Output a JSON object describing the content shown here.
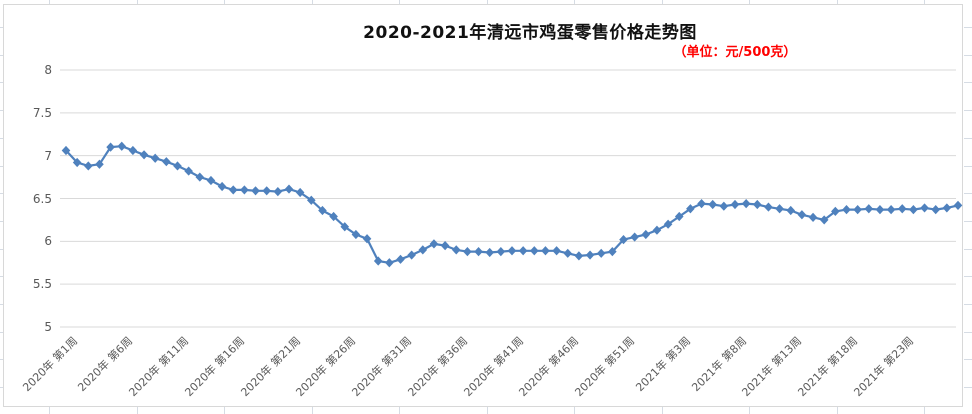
{
  "chart": {
    "title": "2020-2021年清远市鸡蛋零售价格走势图",
    "subtitle": "（单位：元/500克）"
  },
  "chart_data": {
    "type": "line",
    "title": "2020-2021年清远市鸡蛋零售价格走势图",
    "subtitle": "（单位：元/500克）",
    "unit": "元/500克",
    "series_name": "鸡蛋零售价格",
    "marker": "diamond",
    "line_color": "#4f81bd",
    "grid_color": "#d9d9d9",
    "axis_text_color": "#595959",
    "title_color": "#111111",
    "subtitle_color": "#ff0000",
    "grid": true,
    "legend_position": "none",
    "ylim": [
      5,
      8
    ],
    "ytick_step": 0.5,
    "ytick_labels": [
      "8",
      "7.5",
      "7",
      "6.5",
      "6",
      "5.5",
      "5"
    ],
    "xtick_every": 5,
    "xtick_labels": [
      "2020年 第1周",
      "2020年 第6周",
      "2020年 第11周",
      "2020年 第16周",
      "2020年 第21周",
      "2020年 第26周",
      "2020年 第31周",
      "2020年 第36周",
      "2020年 第41周",
      "2020年 第46周",
      "2020年 第51周",
      "2021年 第3周",
      "2021年 第8周",
      "2021年 第13周",
      "2021年 第18周",
      "2021年 第23周"
    ],
    "x": [
      "2020年 第1周",
      "2020年 第2周",
      "2020年 第3周",
      "2020年 第4周",
      "2020年 第5周",
      "2020年 第6周",
      "2020年 第7周",
      "2020年 第8周",
      "2020年 第9周",
      "2020年 第10周",
      "2020年 第11周",
      "2020年 第12周",
      "2020年 第13周",
      "2020年 第14周",
      "2020年 第15周",
      "2020年 第16周",
      "2020年 第17周",
      "2020年 第18周",
      "2020年 第19周",
      "2020年 第20周",
      "2020年 第21周",
      "2020年 第22周",
      "2020年 第23周",
      "2020年 第24周",
      "2020年 第25周",
      "2020年 第26周",
      "2020年 第27周",
      "2020年 第28周",
      "2020年 第29周",
      "2020年 第30周",
      "2020年 第31周",
      "2020年 第32周",
      "2020年 第33周",
      "2020年 第34周",
      "2020年 第35周",
      "2020年 第36周",
      "2020年 第37周",
      "2020年 第38周",
      "2020年 第39周",
      "2020年 第40周",
      "2020年 第41周",
      "2020年 第42周",
      "2020年 第43周",
      "2020年 第44周",
      "2020年 第45周",
      "2020年 第46周",
      "2020年 第47周",
      "2020年 第48周",
      "2020年 第49周",
      "2020年 第50周",
      "2020年 第51周",
      "2020年 第52周",
      "2020年 第53周",
      "2021年 第1周",
      "2021年 第2周",
      "2021年 第3周",
      "2021年 第4周",
      "2021年 第5周",
      "2021年 第6周",
      "2021年 第7周",
      "2021年 第8周",
      "2021年 第9周",
      "2021年 第10周",
      "2021年 第11周",
      "2021年 第12周",
      "2021年 第13周",
      "2021年 第14周",
      "2021年 第15周",
      "2021年 第16周",
      "2021年 第17周",
      "2021年 第18周",
      "2021年 第19周",
      "2021年 第20周",
      "2021年 第21周",
      "2021年 第22周",
      "2021年 第23周",
      "2021年 第24周",
      "2021年 第25周",
      "2021年 第26周",
      "2021年 第27周",
      "2021年 第28周"
    ],
    "values": [
      7.06,
      6.92,
      6.88,
      6.9,
      7.1,
      7.11,
      7.06,
      7.01,
      6.97,
      6.93,
      6.88,
      6.82,
      6.75,
      6.71,
      6.64,
      6.6,
      6.6,
      6.59,
      6.59,
      6.58,
      6.61,
      6.57,
      6.48,
      6.36,
      6.29,
      6.17,
      6.08,
      6.03,
      5.77,
      5.75,
      5.79,
      5.84,
      5.9,
      5.97,
      5.95,
      5.9,
      5.88,
      5.88,
      5.87,
      5.88,
      5.89,
      5.89,
      5.89,
      5.89,
      5.89,
      5.86,
      5.83,
      5.84,
      5.86,
      5.88,
      6.02,
      6.05,
      6.08,
      6.13,
      6.2,
      6.29,
      6.38,
      6.44,
      6.43,
      6.41,
      6.43,
      6.44,
      6.43,
      6.4,
      6.38,
      6.36,
      6.31,
      6.28,
      6.25,
      6.35,
      6.37,
      6.37,
      6.38,
      6.37,
      6.37,
      6.38,
      6.37,
      6.39,
      6.37,
      6.39,
      6.42
    ]
  }
}
